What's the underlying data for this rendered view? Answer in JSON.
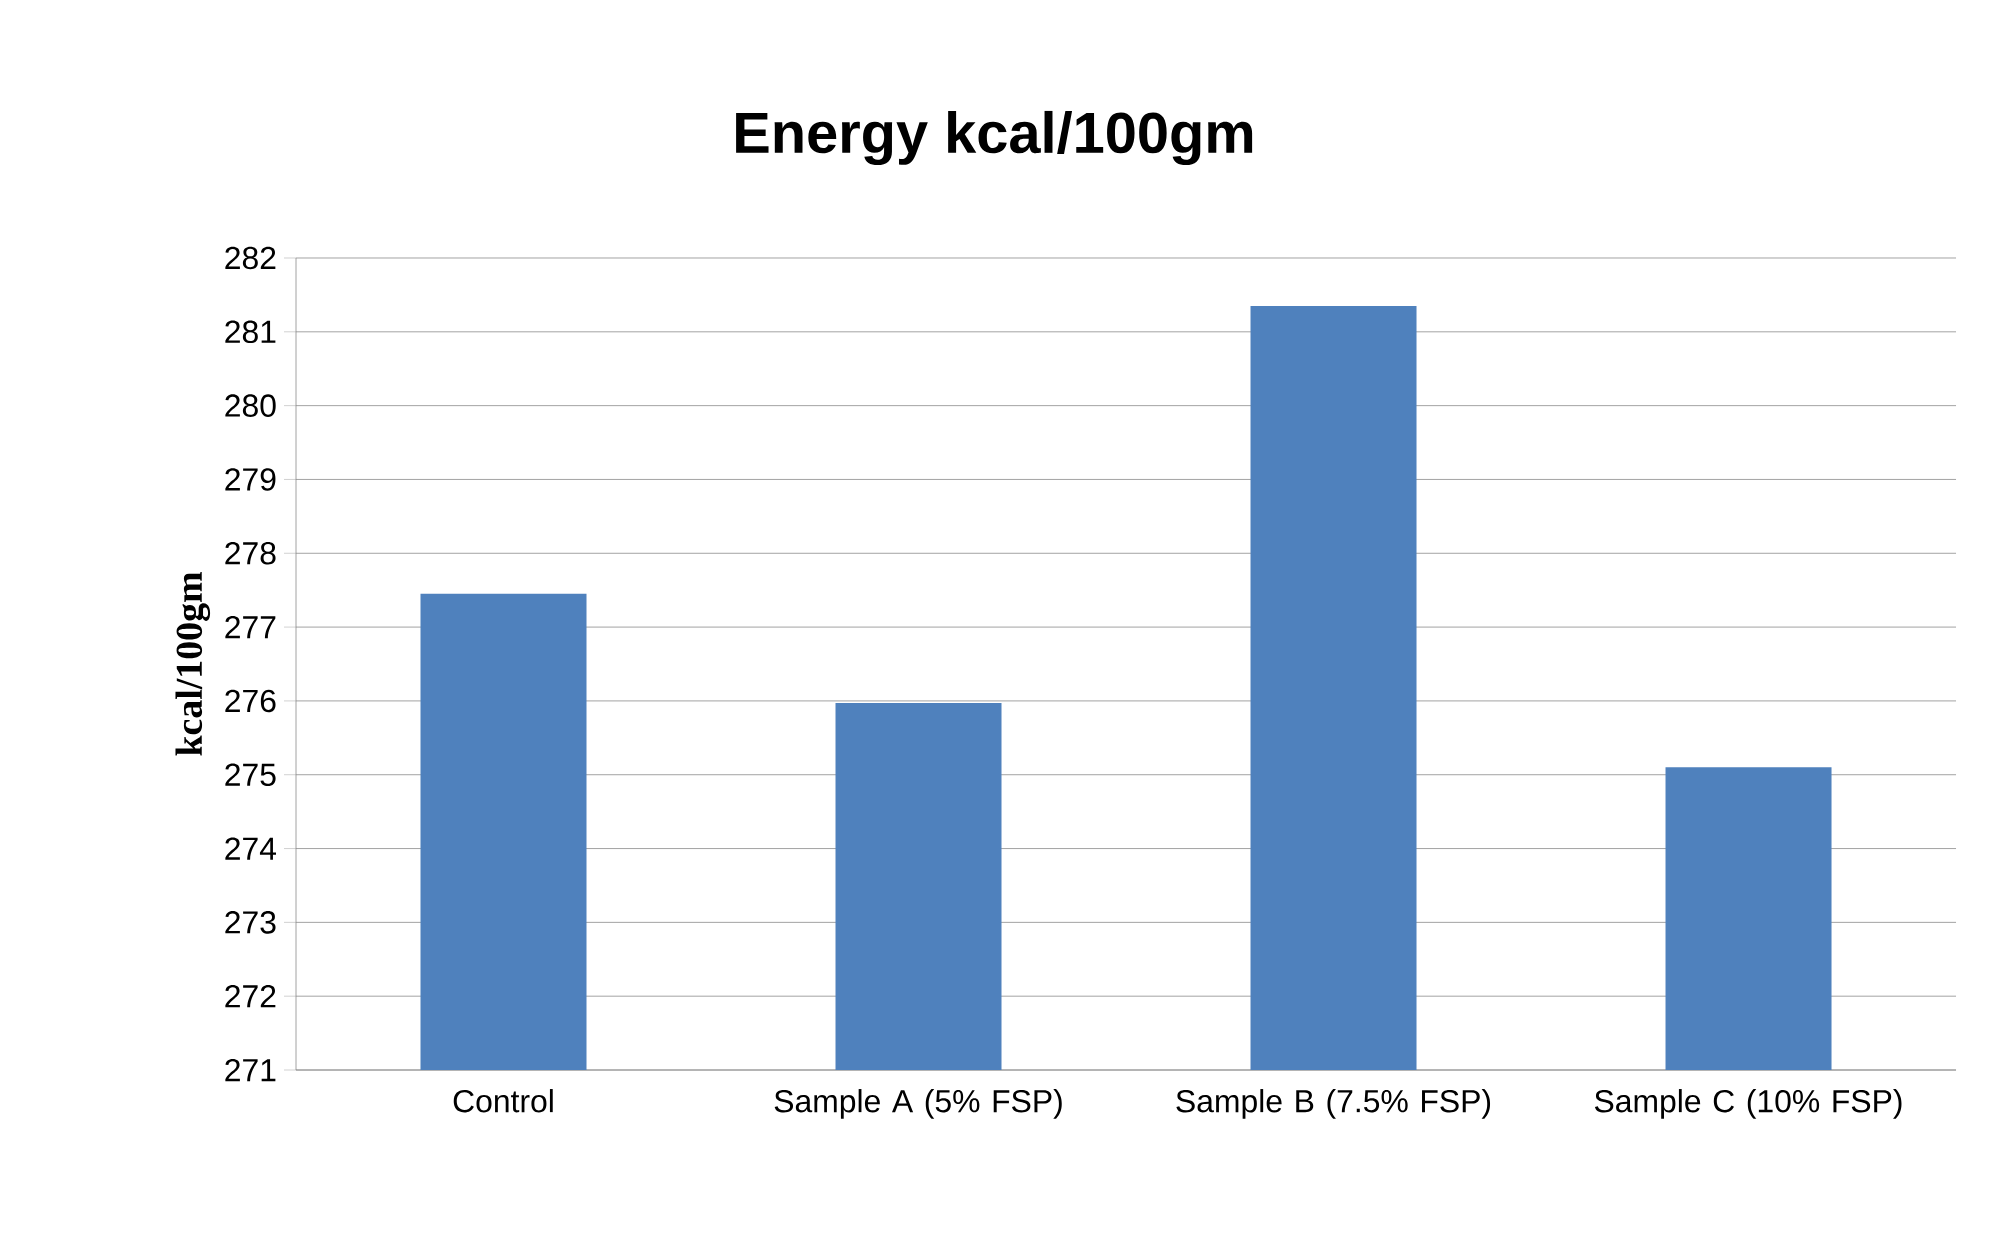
{
  "chart_data": {
    "type": "bar",
    "title": "Energy kcal/100gm",
    "ylabel": "kcal/100gm",
    "categories": [
      "Control",
      "Sample A (5% FSP)",
      "Sample B (7.5% FSP)",
      "Sample C (10% FSP)"
    ],
    "values": [
      277.45,
      275.97,
      281.35,
      275.1
    ],
    "color": "#4f81bd",
    "ylim": [
      271,
      282
    ],
    "yticks": [
      271,
      272,
      273,
      274,
      275,
      276,
      277,
      278,
      279,
      280,
      281,
      282
    ],
    "grid": "y"
  }
}
